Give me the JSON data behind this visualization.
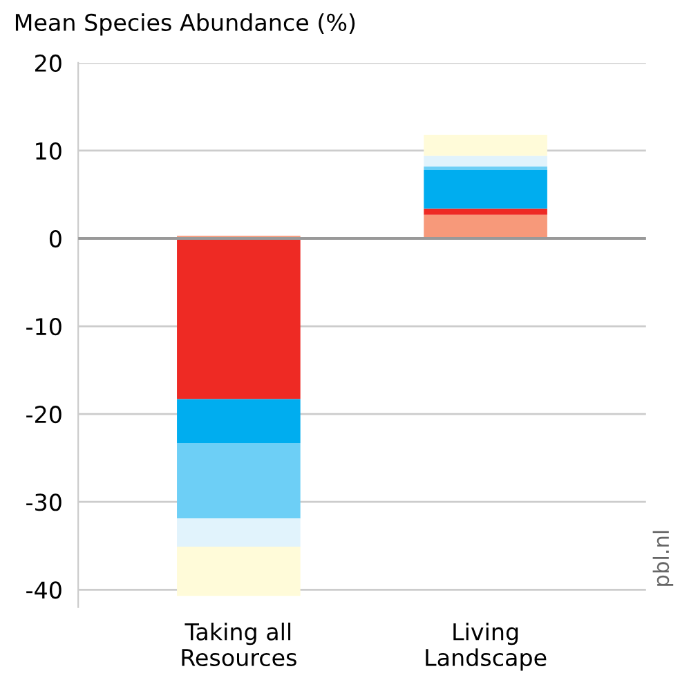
{
  "chart_data": {
    "type": "bar",
    "title": "Mean Species Abundance (%)",
    "categories": [
      "Taking all\nResources",
      "Living\nLandscape"
    ],
    "stacked": true,
    "series": [
      {
        "color": "#f7997a",
        "values": [
          0.3,
          2.7
        ]
      },
      {
        "color": "#ee2a24",
        "values": [
          -18.3,
          0.7
        ]
      },
      {
        "color": "#00adef",
        "values": [
          -5.0,
          4.4
        ]
      },
      {
        "color": "#6dcff6",
        "values": [
          -8.6,
          0.4
        ]
      },
      {
        "color": "#e1f3fc",
        "values": [
          -3.2,
          1.2
        ]
      },
      {
        "color": "#fffbd9",
        "values": [
          -5.6,
          2.4
        ]
      }
    ],
    "ylim": [
      -42,
      20
    ],
    "yticks": [
      {
        "value": -40,
        "label": "-40"
      },
      {
        "value": -30,
        "label": "-30"
      },
      {
        "value": -20,
        "label": "-20"
      },
      {
        "value": -10,
        "label": "-10"
      },
      0,
      10,
      20
    ],
    "grid": "y",
    "ref_lines": [
      {
        "axis": "y",
        "value": 0,
        "color": "#999999"
      }
    ],
    "annotations": [
      "pbl.nl"
    ]
  }
}
